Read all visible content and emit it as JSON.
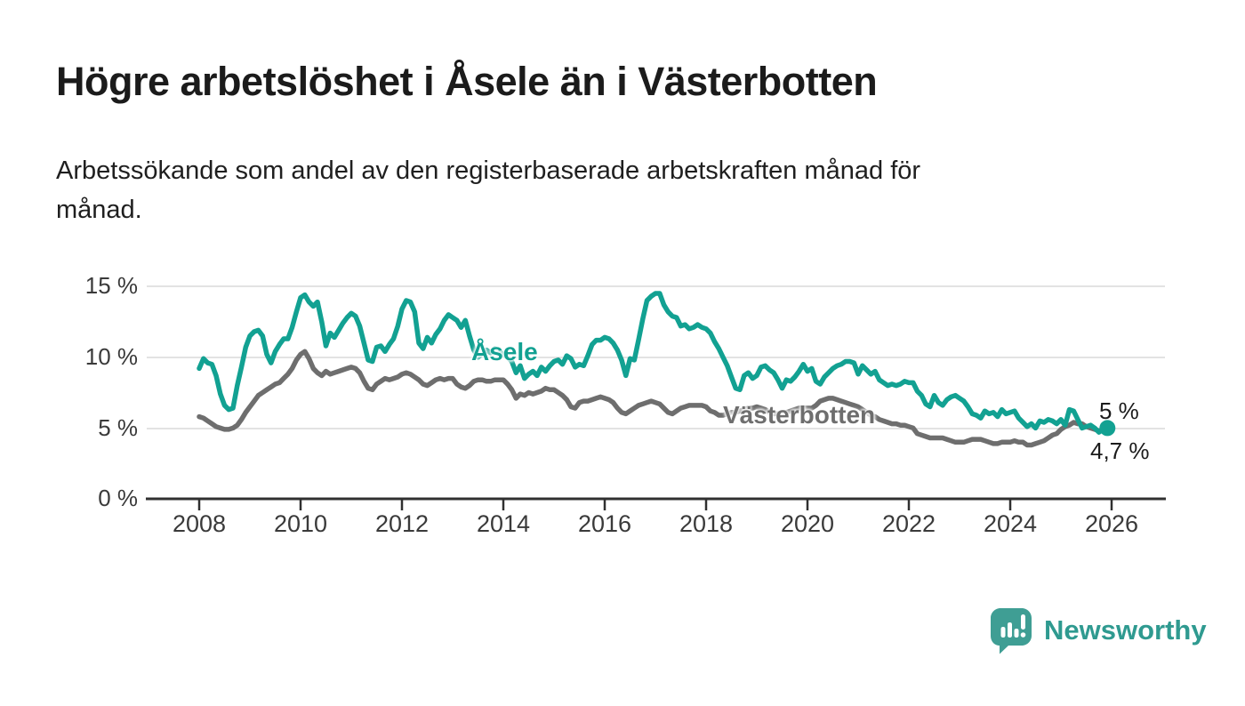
{
  "header": {
    "title": "Högre arbetslöshet i Åsele än i Västerbotten",
    "subtitle": "Arbetssökande som andel av den registerbaserade arbetskraften månad för månad.",
    "subtitle_line1": "Arbetssökande som andel av den registerbaserade arbetskraften månad för",
    "subtitle_line2": "månad."
  },
  "chart_data": {
    "type": "line",
    "title": "Högre arbetslöshet i Åsele än i Västerbotten",
    "xlabel": "",
    "ylabel": "Arbetssökande som andel av den registerbaserade arbetskraften",
    "unit": "%",
    "frequency": "monthly",
    "x_start": "2008-01",
    "x_end": "2025-12",
    "ylim": [
      0,
      16.5
    ],
    "grid": "horizontal",
    "x_tick_labels": [
      "2008",
      "2010",
      "2012",
      "2014",
      "2016",
      "2018",
      "2020",
      "2022",
      "2024",
      "2026"
    ],
    "y_tick_labels": [
      "15 %",
      "10 %",
      "5 %",
      "0 %"
    ],
    "colors": {
      "asele": "#12a192",
      "vasterbotten": "#6e6e6e",
      "grid": "#dadada",
      "axis": "#303030"
    },
    "series": [
      {
        "name": "Åsele",
        "color": "#12a192",
        "end_label": "5 %",
        "end_value": 5.0,
        "values": [
          9.2,
          9.9,
          9.6,
          9.5,
          8.7,
          7.4,
          6.6,
          6.3,
          6.4,
          8.0,
          9.3,
          10.7,
          11.5,
          11.8,
          11.9,
          11.5,
          10.2,
          9.6,
          10.4,
          10.9,
          11.3,
          11.3,
          12.1,
          13.2,
          14.2,
          14.4,
          13.9,
          13.6,
          13.9,
          12.5,
          10.8,
          11.7,
          11.4,
          11.9,
          12.4,
          12.8,
          13.1,
          12.9,
          12.2,
          11.0,
          9.8,
          9.7,
          10.7,
          10.8,
          10.4,
          10.9,
          11.3,
          12.2,
          13.4,
          14.0,
          13.9,
          13.2,
          11.0,
          10.6,
          11.4,
          11.0,
          11.6,
          12.0,
          12.6,
          13.0,
          12.8,
          12.6,
          12.1,
          12.6,
          11.5,
          10.5,
          10.0,
          10.2,
          10.5,
          10.3,
          10.6,
          10.4,
          10.2,
          10.0,
          9.7,
          8.9,
          9.4,
          8.5,
          8.8,
          9.0,
          8.7,
          9.3,
          9.0,
          9.4,
          9.7,
          9.8,
          9.5,
          10.1,
          9.9,
          9.3,
          9.5,
          9.4,
          10.1,
          10.9,
          11.2,
          11.2,
          11.4,
          11.3,
          11.0,
          10.5,
          9.8,
          8.7,
          9.9,
          9.8,
          11.2,
          12.7,
          14.0,
          14.3,
          14.5,
          14.5,
          13.7,
          13.2,
          12.9,
          12.8,
          12.2,
          12.3,
          12.0,
          12.1,
          12.3,
          12.1,
          12.0,
          11.7,
          11.1,
          10.6,
          10.0,
          9.4,
          8.6,
          7.8,
          7.7,
          8.7,
          8.9,
          8.5,
          8.7,
          9.3,
          9.4,
          9.1,
          8.9,
          8.4,
          7.8,
          8.4,
          8.3,
          8.6,
          9.0,
          9.5,
          9.0,
          9.2,
          8.3,
          8.1,
          8.6,
          8.9,
          9.2,
          9.4,
          9.5,
          9.7,
          9.7,
          9.6,
          8.8,
          9.4,
          9.1,
          8.8,
          9.0,
          8.4,
          8.2,
          8.0,
          8.1,
          8.0,
          8.1,
          8.3,
          8.2,
          8.2,
          7.6,
          7.3,
          6.7,
          6.5,
          7.3,
          6.8,
          6.6,
          7.0,
          7.2,
          7.3,
          7.1,
          6.9,
          6.5,
          6.0,
          5.9,
          5.7,
          6.2,
          6.0,
          6.1,
          5.8,
          6.3,
          6.0,
          6.1,
          6.2,
          5.7,
          5.4,
          5.1,
          5.3,
          5.0,
          5.5,
          5.4,
          5.6,
          5.5,
          5.3,
          5.6,
          5.2,
          6.3,
          6.2,
          5.6,
          5.0,
          5.1,
          5.2,
          5.0,
          4.7,
          4.9,
          5.0
        ]
      },
      {
        "name": "Västerbotten",
        "color": "#6e6e6e",
        "end_label": "4,7 %",
        "end_value": 4.7,
        "values": [
          5.8,
          5.7,
          5.5,
          5.3,
          5.1,
          5.0,
          4.9,
          4.9,
          5.0,
          5.2,
          5.6,
          6.1,
          6.5,
          6.9,
          7.3,
          7.5,
          7.7,
          7.9,
          8.1,
          8.2,
          8.5,
          8.8,
          9.2,
          9.8,
          10.2,
          10.4,
          9.9,
          9.2,
          8.9,
          8.7,
          9.0,
          8.8,
          8.9,
          9.0,
          9.1,
          9.2,
          9.3,
          9.2,
          8.9,
          8.3,
          7.8,
          7.7,
          8.1,
          8.3,
          8.5,
          8.4,
          8.5,
          8.6,
          8.8,
          8.9,
          8.8,
          8.6,
          8.4,
          8.1,
          8.0,
          8.2,
          8.4,
          8.5,
          8.4,
          8.5,
          8.5,
          8.1,
          7.9,
          7.8,
          8.0,
          8.3,
          8.4,
          8.4,
          8.3,
          8.3,
          8.4,
          8.4,
          8.4,
          8.1,
          7.7,
          7.1,
          7.4,
          7.3,
          7.5,
          7.4,
          7.5,
          7.6,
          7.8,
          7.7,
          7.7,
          7.5,
          7.3,
          7.0,
          6.5,
          6.4,
          6.8,
          6.9,
          6.9,
          7.0,
          7.1,
          7.2,
          7.1,
          7.0,
          6.8,
          6.4,
          6.1,
          6.0,
          6.2,
          6.4,
          6.6,
          6.7,
          6.8,
          6.9,
          6.8,
          6.7,
          6.4,
          6.1,
          6.0,
          6.2,
          6.4,
          6.5,
          6.6,
          6.6,
          6.6,
          6.6,
          6.5,
          6.2,
          6.1,
          5.9,
          5.9,
          6.0,
          6.1,
          6.1,
          6.2,
          6.3,
          6.4,
          6.4,
          6.5,
          6.4,
          6.3,
          6.1,
          6.0,
          6.0,
          6.1,
          6.1,
          6.2,
          6.3,
          6.4,
          6.4,
          6.4,
          6.4,
          6.6,
          6.9,
          7.0,
          7.1,
          7.1,
          7.0,
          6.9,
          6.8,
          6.7,
          6.6,
          6.5,
          6.3,
          6.1,
          5.9,
          5.8,
          5.6,
          5.5,
          5.4,
          5.3,
          5.3,
          5.2,
          5.2,
          5.1,
          5.0,
          4.6,
          4.5,
          4.4,
          4.3,
          4.3,
          4.3,
          4.3,
          4.2,
          4.1,
          4.0,
          4.0,
          4.0,
          4.1,
          4.2,
          4.2,
          4.2,
          4.1,
          4.0,
          3.9,
          3.9,
          4.0,
          4.0,
          4.0,
          4.1,
          4.0,
          4.0,
          3.8,
          3.8,
          3.9,
          4.0,
          4.1,
          4.3,
          4.5,
          4.6,
          4.9,
          5.1,
          5.2,
          5.4,
          5.3,
          5.3,
          5.1,
          5.0,
          4.9,
          4.8,
          4.8,
          4.7
        ]
      }
    ]
  },
  "branding": {
    "logo_text": "Newsworthy",
    "logo_color": "#2f9a90",
    "logo_bubble_color": "#3f9e94"
  }
}
